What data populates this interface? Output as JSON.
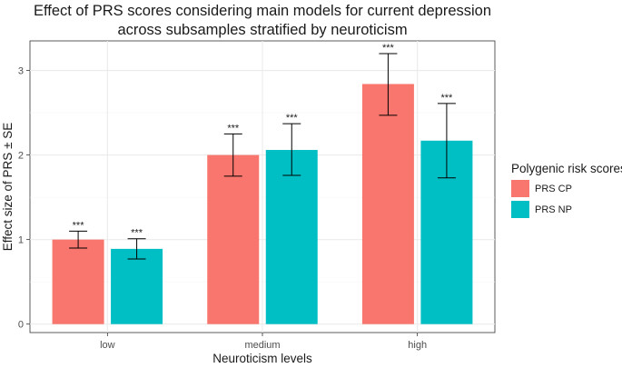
{
  "chart_data": {
    "type": "bar",
    "title": "Effect of PRS scores considering main models for current depression across subsamples stratified by neuroticism",
    "title_lines": [
      "Effect of PRS scores considering main models for current depression",
      "across subsamples stratified by neuroticism"
    ],
    "xlabel": "Neuroticism levels",
    "ylabel": "Effect size of PRS ± SE",
    "categories": [
      "low",
      "medium",
      "high"
    ],
    "ylim": [
      -0.1,
      3.35
    ],
    "yticks": [
      0,
      1,
      2,
      3
    ],
    "grid": true,
    "legend": {
      "title": "Polygenic risk scores",
      "position": "right"
    },
    "series": [
      {
        "name": "PRS CP",
        "color": "#F8766D",
        "values": [
          1.0,
          2.0,
          2.84
        ],
        "err_low": [
          0.9,
          1.75,
          2.47
        ],
        "err_high": [
          1.1,
          2.25,
          3.2
        ],
        "labels": [
          "***",
          "***",
          "***"
        ]
      },
      {
        "name": "PRS NP",
        "color": "#00BFC4",
        "values": [
          0.89,
          2.06,
          2.17
        ],
        "err_low": [
          0.77,
          1.76,
          1.73
        ],
        "err_high": [
          1.01,
          2.37,
          2.61
        ],
        "labels": [
          "***",
          "***",
          "***"
        ]
      }
    ]
  }
}
